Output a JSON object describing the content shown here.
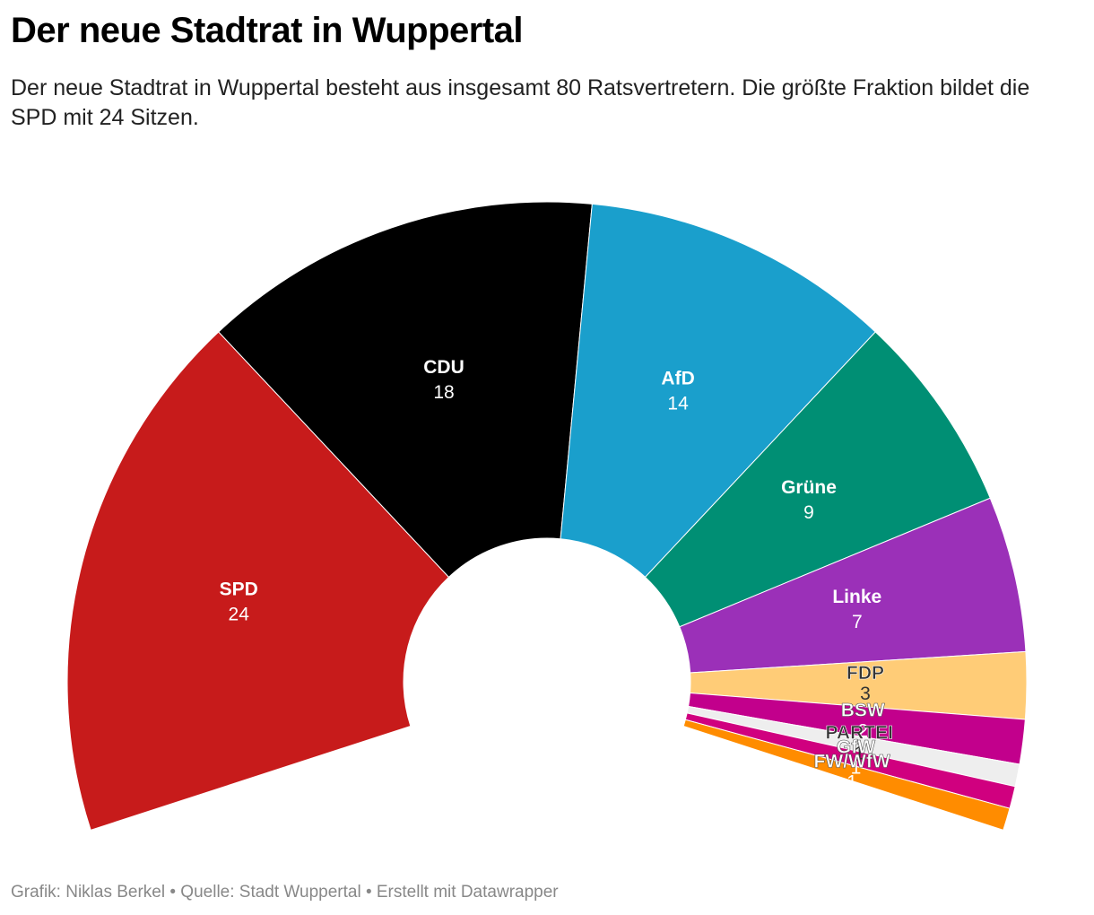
{
  "title": "Der neue Stadtrat in Wuppertal",
  "subtitle": "Der neue Stadtrat in Wuppertal besteht aus insgesamt 80 Ratsvertretern. Die größte Fraktion bildet die SPD mit 24 Sitzen.",
  "footer": "Grafik: Niklas Berkel • Quelle: Stadt Wuppertal • Erstellt mit Datawrapper",
  "chart_data": {
    "type": "pie",
    "variant": "half-donut",
    "total": 80,
    "categories": [
      "SPD",
      "CDU",
      "AfD",
      "Grüne",
      "Linke",
      "FDP",
      "BSW",
      "PARTEI",
      "GfW",
      "FW/WfW"
    ],
    "values": [
      24,
      18,
      14,
      9,
      7,
      3,
      2,
      1,
      1,
      1
    ],
    "colors": [
      "#c71b1b",
      "#000000",
      "#1a9fcc",
      "#008f74",
      "#9b30b8",
      "#ffcc77",
      "#c2008c",
      "#eeeeee",
      "#d0007f",
      "#ff8c00"
    ],
    "label_colors": [
      "#ffffff",
      "#ffffff",
      "#ffffff",
      "#ffffff",
      "#ffffff",
      "#333333",
      "#ffffff",
      "#333333",
      "#ffffff",
      "#ffffff"
    ]
  }
}
